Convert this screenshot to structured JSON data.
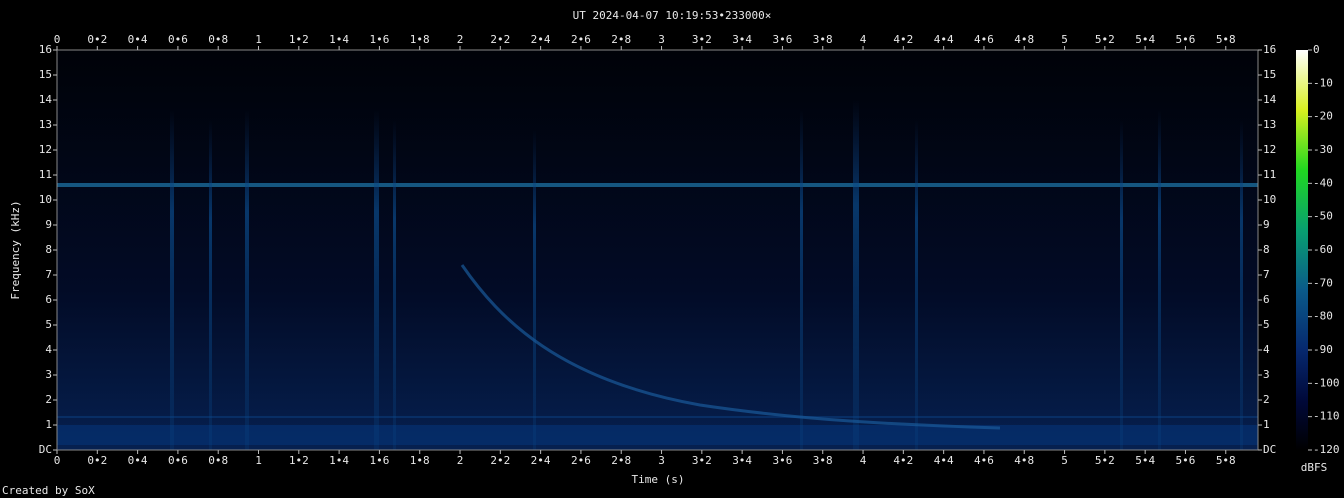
{
  "chart_data": {
    "type": "spectrogram",
    "title": "UT 2024-04-07 10:19:53•233000×",
    "x_label": "Time (s)",
    "y_label": "Frequency (kHz)",
    "colorbar_label": "dBFS",
    "footer": "Created by SoX",
    "xlim": [
      0,
      5.96
    ],
    "ylim": [
      0,
      16
    ],
    "clim": [
      -120,
      0
    ],
    "xticks": [
      0,
      {
        "value": 0.2,
        "label": "0•2"
      },
      {
        "value": 0.4,
        "label": "0•4"
      },
      {
        "value": 0.6,
        "label": "0•6"
      },
      {
        "value": 0.8,
        "label": "0•8"
      },
      1,
      {
        "value": 1.2,
        "label": "1•2"
      },
      {
        "value": 1.4,
        "label": "1•4"
      },
      {
        "value": 1.6,
        "label": "1•6"
      },
      {
        "value": 1.8,
        "label": "1•8"
      },
      2,
      {
        "value": 2.2,
        "label": "2•2"
      },
      {
        "value": 2.4,
        "label": "2•4"
      },
      {
        "value": 2.6,
        "label": "2•6"
      },
      {
        "value": 2.8,
        "label": "2•8"
      },
      3,
      {
        "value": 3.2,
        "label": "3•2"
      },
      {
        "value": 3.4,
        "label": "3•4"
      },
      {
        "value": 3.6,
        "label": "3•6"
      },
      {
        "value": 3.8,
        "label": "3•8"
      },
      4,
      {
        "value": 4.2,
        "label": "4•2"
      },
      {
        "value": 4.4,
        "label": "4•4"
      },
      {
        "value": 4.6,
        "label": "4•6"
      },
      {
        "value": 4.8,
        "label": "4•8"
      },
      5,
      {
        "value": 5.2,
        "label": "5•2"
      },
      {
        "value": 5.4,
        "label": "5•4"
      },
      {
        "value": 5.6,
        "label": "5•6"
      },
      {
        "value": 5.8,
        "label": "5•8"
      }
    ],
    "yticks": [
      {
        "value": 0,
        "label": "DC"
      },
      1,
      2,
      3,
      4,
      5,
      6,
      7,
      8,
      9,
      10,
      11,
      12,
      13,
      14,
      15,
      16
    ],
    "cticks": [
      0,
      -10,
      -20,
      -30,
      -40,
      -50,
      -60,
      -70,
      -80,
      -90,
      -100,
      -110,
      -120
    ]
  }
}
